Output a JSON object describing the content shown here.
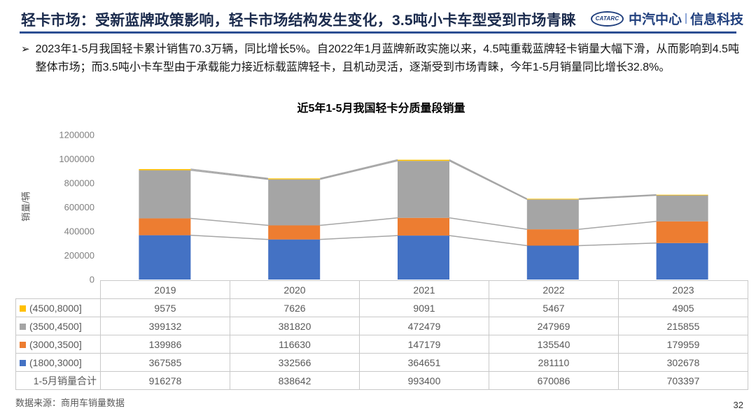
{
  "header": {
    "title": "轻卡市场：受新蓝牌政策影响，轻卡市场结构发生变化，3.5吨小卡车型受到市场青睐",
    "logo": {
      "mark": "CATARC",
      "text_primary": "中汽中心",
      "text_secondary": "信息科技",
      "color": "#21407e"
    }
  },
  "body": {
    "bullet_marker": "➢",
    "paragraph": "2023年1-5月我国轻卡累计销售70.3万辆，同比增长5%。自2022年1月蓝牌新政实施以来，4.5吨重载蓝牌轻卡销量大幅下滑，从而影响到4.5吨整体市场；而3.5吨小卡车型由于承载能力接近标载蓝牌轻卡，且机动灵活，逐渐受到市场青睐，今年1-5月销量同比增长32.8%。"
  },
  "chart_data": {
    "type": "bar",
    "stacked": true,
    "title": "近5年1-5月我国轻卡分质量段销量",
    "xlabel": "",
    "ylabel": "销量/辆",
    "ylim": [
      0,
      1200000
    ],
    "yticks": [
      0,
      200000,
      400000,
      600000,
      800000,
      1000000,
      1200000
    ],
    "gridlines": false,
    "legend_position": "table-rows",
    "series_lines": true,
    "categories": [
      "2019",
      "2020",
      "2021",
      "2022",
      "2023"
    ],
    "series": [
      {
        "name": "(1800,3000]",
        "color": "#4472C4",
        "values": [
          367585,
          332566,
          364651,
          281110,
          302678
        ]
      },
      {
        "name": "(3000,3500]",
        "color": "#ED7D31",
        "values": [
          139986,
          116630,
          147179,
          135540,
          179959
        ]
      },
      {
        "name": "(3500,4500]",
        "color": "#A5A5A5",
        "values": [
          399132,
          381820,
          472479,
          247969,
          215855
        ]
      },
      {
        "name": "(4500,8000]",
        "color": "#FFC000",
        "values": [
          9575,
          7626,
          9091,
          5467,
          4905
        ]
      }
    ]
  },
  "table": {
    "total_row": {
      "label": "1-5月销量合计",
      "values": [
        916278,
        838642,
        993400,
        670086,
        703397
      ]
    }
  },
  "footer": {
    "source": "数据来源：商用车销量数据",
    "page_number": "32"
  }
}
